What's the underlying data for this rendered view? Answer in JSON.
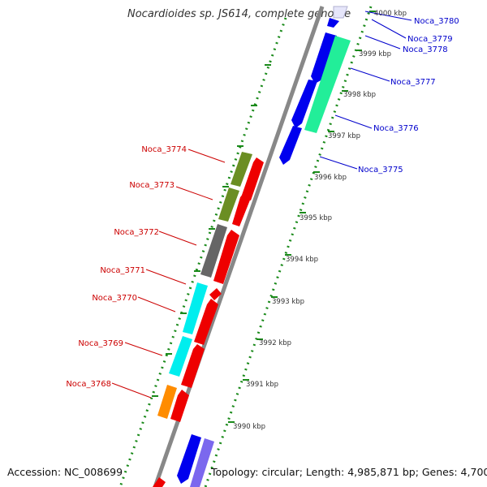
{
  "title": "Nocardioides sp. JS614, complete genome",
  "footer": {
    "accession": "Accession: NC_008699",
    "summary": "Topology: circular; Length: 4,985,871 bp; Genes: 4,700"
  },
  "colors": {
    "backbone": "#888888",
    "ruler": "#1a8a1a",
    "forward_label": "#0000cc",
    "reverse_label": "#cc0000"
  },
  "ruler_ticks": [
    "4000 kbp",
    "3999 kbp",
    "3998 kbp",
    "3997 kbp",
    "3996 kbp",
    "3995 kbp",
    "3994 kbp",
    "3993 kbp",
    "3992 kbp",
    "3991 kbp",
    "3990 kbp"
  ],
  "forward_labels": [
    "Noca_3780",
    "Noca_3779",
    "Noca_3778",
    "Noca_3777",
    "Noca_3776",
    "Noca_3775"
  ],
  "reverse_labels": [
    "Noca_3774",
    "Noca_3773",
    "Noca_3772",
    "Noca_3771",
    "Noca_3770",
    "Noca_3769",
    "Noca_3768"
  ]
}
